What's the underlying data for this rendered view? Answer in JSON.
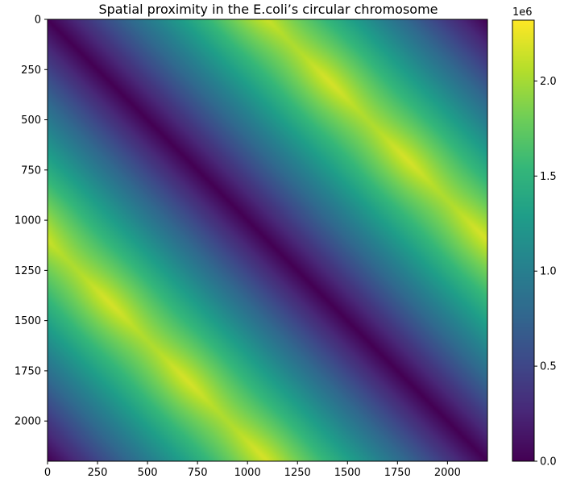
{
  "chart_data": {
    "type": "heatmap",
    "title": "Spatial proximity in the E.coli’s circular chromosome",
    "xlabel": "",
    "ylabel": "",
    "xlim": [
      0,
      2200
    ],
    "ylim": [
      2200,
      0
    ],
    "x_ticks": [
      0,
      250,
      500,
      750,
      1000,
      1250,
      1500,
      1750,
      2000
    ],
    "y_ticks": [
      0,
      250,
      500,
      750,
      1000,
      1250,
      1500,
      1750,
      2000
    ],
    "x_tick_labels": [
      "0",
      "250",
      "500",
      "750",
      "1000",
      "1250",
      "1500",
      "1750",
      "2000"
    ],
    "y_tick_labels": [
      "0",
      "250",
      "500",
      "750",
      "1000",
      "1250",
      "1500",
      "1750",
      "2000"
    ],
    "grid": false,
    "colormap": "viridis",
    "colorbar": {
      "range": [
        0,
        2320000
      ],
      "offset_label": "1e6",
      "ticks": [
        0,
        500000,
        1000000,
        1500000,
        2000000
      ],
      "tick_labels": [
        "0.0",
        "0.5",
        "1.0",
        "1.5",
        "2.0"
      ]
    },
    "matrix_description": {
      "n": 2200,
      "formula": "value(i,j) = min(|i-j|, 2200-|i-j|) * 2.11e6 / 1100, with small wavy perturbations near the anti-diagonal bands",
      "max_value": 2320000,
      "min_value": 0
    }
  },
  "colors": {
    "viridis_stops": [
      "#440154",
      "#482878",
      "#3e4989",
      "#31688e",
      "#26828e",
      "#1f9e89",
      "#35b779",
      "#6ece58",
      "#b5de2b",
      "#fde725"
    ]
  }
}
